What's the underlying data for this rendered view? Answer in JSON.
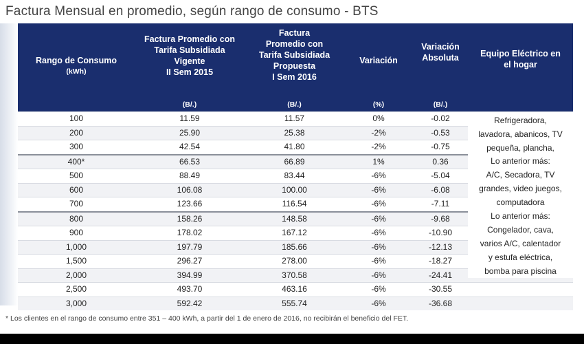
{
  "title": "Factura Mensual en promedio, según rango de consumo - BTS",
  "headers": {
    "rango": [
      "Rango de Consumo",
      "(kWh)"
    ],
    "vigente": [
      "Factura Promedio con",
      "Tarifa Subsidiada",
      "Vigente",
      "II Sem 2015"
    ],
    "propuesta": [
      "Factura",
      "Promedio con",
      "Tarifa Subsidiada",
      "Propuesta",
      "I Sem 2016"
    ],
    "variacion": "Variación",
    "variacion_abs": [
      "Variación",
      "Absoluta"
    ],
    "equipo": [
      "Equipo Eléctrico  en",
      "el hogar"
    ]
  },
  "units": {
    "vigente": "(B/.)",
    "propuesta": "(B/.)",
    "variacion": "(%)",
    "variacion_abs": "(B/.)"
  },
  "rows": [
    [
      "100",
      "11.59",
      "11.57",
      "0%",
      "-0.02"
    ],
    [
      "200",
      "25.90",
      "25.38",
      "-2%",
      "-0.53"
    ],
    [
      "300",
      "42.54",
      "41.80",
      "-2%",
      "-0.75"
    ],
    [
      "400*",
      "66.53",
      "66.89",
      "1%",
      "0.36"
    ],
    [
      "500",
      "88.49",
      "83.44",
      "-6%",
      "-5.04"
    ],
    [
      "600",
      "106.08",
      "100.00",
      "-6%",
      "-6.08"
    ],
    [
      "700",
      "123.66",
      "116.54",
      "-6%",
      "-7.11"
    ],
    [
      "800",
      "158.26",
      "148.58",
      "-6%",
      "-9.68"
    ],
    [
      "900",
      "178.02",
      "167.12",
      "-6%",
      "-10.90"
    ],
    [
      "1,000",
      "197.79",
      "185.66",
      "-6%",
      "-12.13"
    ],
    [
      "1,500",
      "296.27",
      "278.00",
      "-6%",
      "-18.27"
    ],
    [
      "2,000",
      "394.99",
      "370.58",
      "-6%",
      "-24.41"
    ],
    [
      "2,500",
      "493.70",
      "463.16",
      "-6%",
      "-30.55"
    ],
    [
      "3,000",
      "592.42",
      "555.74",
      "-6%",
      "-36.68"
    ]
  ],
  "equipment": [
    [
      "Refrigeradora,",
      "lavadora, abanicos, TV",
      "pequeña, plancha,"
    ],
    [
      "Lo anterior más:",
      "A/C, Secadora, TV",
      "grandes, video juegos,",
      "computadora"
    ],
    [
      "Lo anterior más:",
      "Congelador, cava,",
      "varios A/C, calentador",
      "y estufa eléctrica,",
      "bomba para piscina"
    ]
  ],
  "footnote": "* Los clientes en el rango de consumo entre 351 – 400 kWh,  a partir del 1 de enero de 2016, no recibirán el beneficio del FET.",
  "colors": {
    "header_bg": "#1a2e6e",
    "header_text": "#ffffff",
    "row_alt": "#f1f2f5"
  }
}
